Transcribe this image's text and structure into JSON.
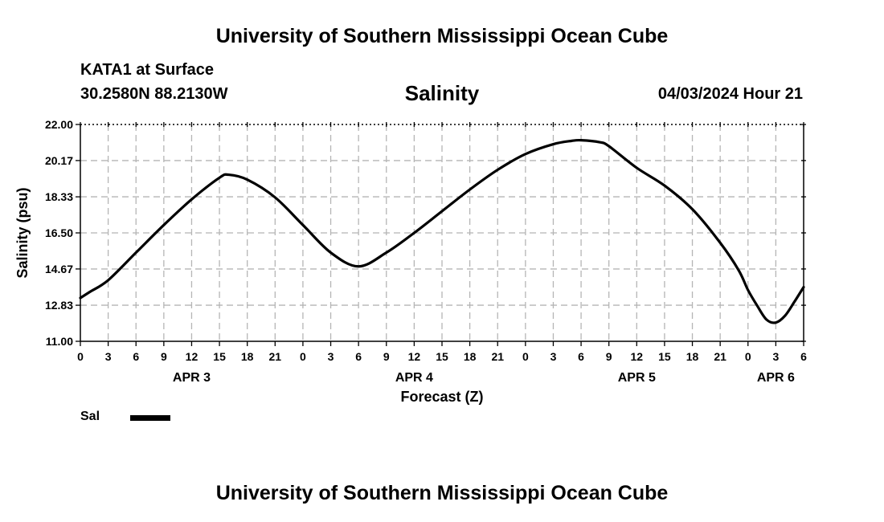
{
  "header": {
    "title": "University of Southern Mississippi Ocean Cube",
    "station": "KATA1 at Surface",
    "coordinates": "30.2580N  88.2130W",
    "chart_title": "Salinity",
    "datetime": "04/03/2024 Hour 21"
  },
  "footer": {
    "title": "University of Southern Mississippi Ocean Cube"
  },
  "legend": {
    "label": "Sal",
    "color": "#000000"
  },
  "chart_data": {
    "type": "line",
    "title": "Salinity",
    "xlabel": "Forecast (Z)",
    "ylabel": "Salinity (psu)",
    "xlim": [
      0,
      78
    ],
    "ylim": [
      11.0,
      22.0
    ],
    "yticks": [
      "11.00",
      "12.83",
      "14.67",
      "16.50",
      "18.33",
      "20.17",
      "22.00"
    ],
    "xtick_labels": [
      "0",
      "3",
      "6",
      "9",
      "12",
      "15",
      "18",
      "21",
      "0",
      "3",
      "6",
      "9",
      "12",
      "15",
      "18",
      "21",
      "0",
      "3",
      "6",
      "9",
      "12",
      "15",
      "18",
      "21",
      "0",
      "3",
      "6"
    ],
    "date_labels": [
      {
        "label": "APR 3",
        "hour": 12
      },
      {
        "label": "APR 4",
        "hour": 36
      },
      {
        "label": "APR 5",
        "hour": 60
      },
      {
        "label": "APR 6",
        "hour": 75
      }
    ],
    "grid": true,
    "series": [
      {
        "name": "Sal",
        "color": "#000000",
        "x": [
          0,
          1,
          3,
          6,
          9,
          12,
          15,
          16,
          18,
          21,
          24,
          27,
          30,
          33,
          36,
          39,
          42,
          45,
          48,
          51,
          53,
          54,
          56,
          57,
          60,
          63,
          66,
          69,
          71,
          72,
          73,
          74,
          75,
          76,
          77,
          78
        ],
        "values": [
          13.2,
          13.5,
          14.1,
          15.5,
          16.9,
          18.2,
          19.3,
          19.45,
          19.2,
          18.3,
          16.9,
          15.5,
          14.8,
          15.5,
          16.5,
          17.6,
          18.7,
          19.7,
          20.5,
          21.0,
          21.17,
          21.2,
          21.1,
          20.9,
          19.8,
          18.9,
          17.7,
          16.0,
          14.6,
          13.6,
          12.8,
          12.1,
          11.95,
          12.3,
          13.0,
          13.75
        ]
      }
    ]
  }
}
